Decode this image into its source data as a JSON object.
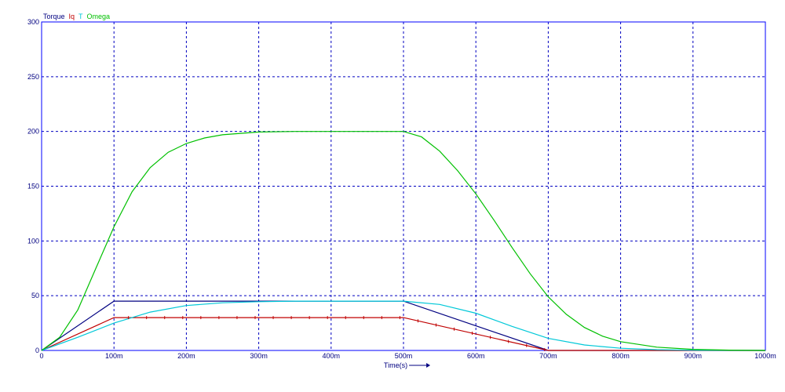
{
  "chart_data": {
    "type": "line",
    "title": "",
    "xlabel": "Time(s)",
    "ylabel": "",
    "xlim": [
      0,
      1000
    ],
    "ylim": [
      0,
      300
    ],
    "x_ticks": [
      0,
      100,
      200,
      300,
      400,
      500,
      600,
      700,
      800,
      900,
      1000
    ],
    "x_tick_labels": [
      "0",
      "100m",
      "200m",
      "300m",
      "400m",
      "500m",
      "600m",
      "700m",
      "800m",
      "900m",
      "1000m"
    ],
    "y_ticks": [
      0,
      50,
      100,
      150,
      200,
      250,
      300
    ],
    "y_tick_labels": [
      "0",
      "50",
      "100",
      "150",
      "200",
      "250",
      "300"
    ],
    "grid": true,
    "legend_placement": "top-left",
    "series": [
      {
        "name": "Torque",
        "color": "#000080",
        "x": [
          0,
          100,
          380,
          500,
          700,
          1000
        ],
        "y": [
          0,
          45,
          45,
          45,
          0,
          0
        ]
      },
      {
        "name": "Iq",
        "color": "#c00000",
        "x": [
          0,
          100,
          500,
          700,
          1000
        ],
        "y": [
          0,
          30,
          30,
          0,
          0
        ]
      },
      {
        "name": "T",
        "color": "#00c8d8",
        "x": [
          0,
          50,
          100,
          150,
          200,
          250,
          300,
          350,
          400,
          450,
          500,
          550,
          600,
          650,
          700,
          750,
          800,
          850,
          900,
          1000
        ],
        "y": [
          0,
          12,
          25,
          35,
          41,
          43.5,
          44.5,
          45,
          45,
          45,
          45,
          42,
          34,
          22,
          11,
          5,
          2,
          0.7,
          0.2,
          0
        ]
      },
      {
        "name": "Omega",
        "color": "#00c000",
        "x": [
          0,
          25,
          50,
          75,
          100,
          125,
          150,
          175,
          200,
          225,
          250,
          300,
          350,
          400,
          450,
          500,
          525,
          550,
          575,
          600,
          625,
          650,
          675,
          700,
          725,
          750,
          775,
          800,
          850,
          900,
          950,
          1000
        ],
        "y": [
          0,
          12,
          37,
          75,
          113,
          145,
          167,
          181,
          189,
          194,
          197,
          199.5,
          200,
          200,
          200,
          200,
          195,
          182,
          164,
          143,
          119,
          94,
          70,
          49,
          33,
          21,
          13,
          8,
          3,
          1,
          0.3,
          0
        ]
      }
    ]
  }
}
